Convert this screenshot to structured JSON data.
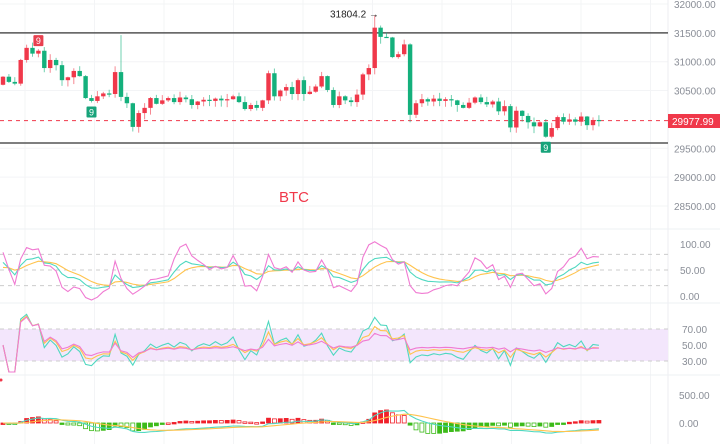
{
  "chart_data": {
    "type": "candlestick",
    "symbol_label": "BTC",
    "colors": {
      "up": "#f0384a",
      "down": "#14b07c",
      "k": "#4fd8c0",
      "d": "#ffc34d",
      "j": "#f07ad2",
      "band": "#f3e6fc"
    },
    "price_axis": {
      "ticks": [
        "32000.00",
        "31500.00",
        "31000.00",
        "30500.00",
        "29500.00",
        "29000.00",
        "28500.00"
      ],
      "tick_values": [
        32000,
        31500,
        31000,
        30500,
        29500,
        29000,
        28500
      ],
      "range": [
        28250,
        32000
      ]
    },
    "last_price": {
      "value": 29977.99,
      "label": "29977.99"
    },
    "high_annotation": {
      "value": 31804.2,
      "label": "31804.2 →"
    },
    "levels": [
      31500,
      29590
    ],
    "markers": [
      {
        "label": "9",
        "type": "sell",
        "index": 6
      },
      {
        "label": "9",
        "type": "buy",
        "index": 15
      },
      {
        "label": "9",
        "type": "buy",
        "index": 92
      }
    ],
    "first_open": 30600,
    "closes": [
      30740,
      30650,
      30620,
      31030,
      31240,
      31140,
      31190,
      30890,
      31030,
      30940,
      30680,
      30730,
      30840,
      30750,
      30370,
      30320,
      30400,
      30450,
      30440,
      30820,
      30390,
      30280,
      29870,
      30110,
      30200,
      30370,
      30270,
      30330,
      30370,
      30300,
      30380,
      30350,
      30250,
      30310,
      30340,
      30320,
      30360,
      30330,
      30350,
      30400,
      30300,
      30180,
      30250,
      30200,
      30330,
      30800,
      30400,
      30500,
      30560,
      30440,
      30680,
      30440,
      30480,
      30570,
      30750,
      30510,
      30250,
      30400,
      30330,
      30300,
      30430,
      30780,
      30890,
      31590,
      31430,
      31420,
      31080,
      31130,
      31300,
      30080,
      30280,
      30350,
      30310,
      30360,
      30320,
      30350,
      30330,
      30250,
      30200,
      30290,
      30380,
      30300,
      30260,
      30310,
      30140,
      30230,
      29860,
      30150,
      30060,
      29950,
      29880,
      29950,
      29700,
      29850,
      30040,
      29960,
      30000,
      29960,
      30050,
      29900,
      29990,
      29977.99
    ],
    "wick_overrides": [
      {
        "index": 20,
        "high": 31460
      },
      {
        "index": 63,
        "high": 31804.2
      },
      {
        "index": 22,
        "low": 29790
      },
      {
        "index": 69,
        "low": 29950
      }
    ],
    "kdj_axis": {
      "ticks": [
        "100.00",
        "50.00",
        "0.00"
      ],
      "tick_values": [
        100,
        50,
        0
      ],
      "guides": [
        80,
        50,
        20
      ]
    },
    "rsi_axis": {
      "ticks": [
        "70.00",
        "50.00",
        "30.00"
      ],
      "tick_values": [
        70,
        50,
        30
      ]
    },
    "macd_axis": {
      "ticks": [
        "500.00",
        "0.00"
      ],
      "tick_values": [
        500,
        0
      ]
    }
  }
}
